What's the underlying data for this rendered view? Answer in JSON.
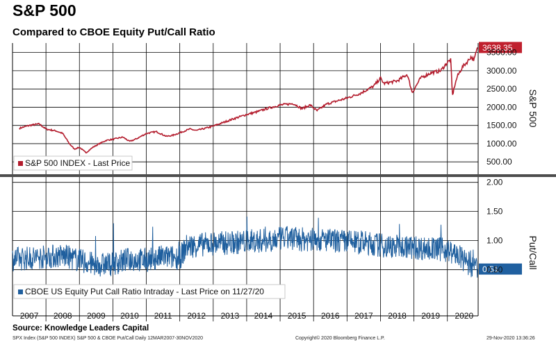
{
  "header": {
    "title": "S&P 500",
    "subtitle": "Compared to CBOE Equity Put/Call Ratio"
  },
  "colors": {
    "spx_line": "#b31b2c",
    "pcr_line": "#1f5f9e",
    "spx_badge": "#c0202e",
    "pcr_badge": "#2060a0",
    "grid": "#000000",
    "divider": "#4d4d4d"
  },
  "chart_data": [
    {
      "type": "line",
      "ylabel": "S&P 500",
      "ylim": [
        180,
        3760
      ],
      "y_ticks": [
        500,
        1000,
        1500,
        2000,
        2500,
        3000,
        3500
      ],
      "y_tick_labels": [
        "500.00",
        "1000.00",
        "1500.00",
        "2000.00",
        "2500.00",
        "3000.00",
        "3500.00"
      ],
      "xlim": [
        2007.0,
        2020.92
      ],
      "x_tick_labels": [
        "2007",
        "2008",
        "2009",
        "2010",
        "2011",
        "2012",
        "2013",
        "2014",
        "2015",
        "2016",
        "2017",
        "2018",
        "2019",
        "2020"
      ],
      "last_value_label": "3638.35",
      "grid": true,
      "series": [
        {
          "name": "S&P 500 INDEX - Last Price",
          "x": [
            2007.2,
            2007.5,
            2007.8,
            2008.0,
            2008.3,
            2008.5,
            2008.7,
            2008.85,
            2009.0,
            2009.2,
            2009.4,
            2009.6,
            2009.8,
            2010.0,
            2010.3,
            2010.5,
            2010.7,
            2011.0,
            2011.3,
            2011.6,
            2011.8,
            2012.0,
            2012.3,
            2012.5,
            2012.8,
            2013.0,
            2013.3,
            2013.6,
            2014.0,
            2014.3,
            2014.6,
            2015.0,
            2015.4,
            2015.65,
            2015.9,
            2016.1,
            2016.4,
            2016.7,
            2017.0,
            2017.4,
            2017.8,
            2018.0,
            2018.1,
            2018.5,
            2018.8,
            2018.95,
            2019.2,
            2019.5,
            2019.8,
            2020.0,
            2020.1,
            2020.15,
            2020.22,
            2020.3,
            2020.45,
            2020.6,
            2020.7,
            2020.8,
            2020.9
          ],
          "y": [
            1420,
            1500,
            1540,
            1400,
            1350,
            1280,
            1000,
            850,
            900,
            750,
            900,
            1000,
            1090,
            1120,
            1180,
            1060,
            1130,
            1280,
            1330,
            1200,
            1230,
            1300,
            1400,
            1360,
            1430,
            1480,
            1580,
            1680,
            1800,
            1870,
            1960,
            2060,
            2100,
            1960,
            2060,
            1900,
            2090,
            2170,
            2250,
            2380,
            2580,
            2800,
            2650,
            2720,
            2900,
            2400,
            2800,
            2940,
            3000,
            3230,
            3300,
            2300,
            2600,
            2850,
            3100,
            3250,
            3380,
            3300,
            3638
          ]
        }
      ]
    },
    {
      "type": "line",
      "ylabel": "Put/Call",
      "ylim": [
        -0.02,
        2.08
      ],
      "y_ticks": [
        0.5,
        1.0,
        1.5,
        2.0
      ],
      "y_tick_labels": [
        "0.50",
        "1.00",
        "1.50",
        "2.00"
      ],
      "xlim": [
        2007.0,
        2020.92
      ],
      "last_value_label": "0.51",
      "grid": true,
      "series": [
        {
          "name": "CBOE US Equity Put Call Ratio Intraday - Last Price on 11/27/20",
          "x": [
            2007.0,
            2007.5,
            2008.0,
            2008.5,
            2009.0,
            2009.5,
            2010.0,
            2010.5,
            2011.0,
            2011.5,
            2012.0,
            2012.2,
            2012.5,
            2013.0,
            2013.5,
            2014.0,
            2014.5,
            2015.0,
            2015.35,
            2015.5,
            2016.0,
            2016.5,
            2017.0,
            2017.5,
            2018.0,
            2018.2,
            2018.5,
            2019.0,
            2019.5,
            2020.0,
            2020.1,
            2020.3,
            2020.5,
            2020.9
          ],
          "y": [
            0.68,
            0.7,
            0.72,
            0.74,
            0.66,
            0.58,
            0.6,
            0.68,
            0.66,
            0.72,
            0.7,
            0.9,
            0.92,
            0.95,
            0.96,
            0.98,
            1.0,
            1.03,
            1.05,
            1.02,
            1.02,
            1.0,
            0.98,
            0.96,
            0.92,
            0.9,
            0.9,
            0.88,
            0.86,
            0.84,
            0.8,
            0.75,
            0.65,
            0.51
          ]
        }
      ]
    }
  ],
  "source": "Source: Knowledge Leaders Capital",
  "footer": {
    "left": "SPX Index (S&P 500 INDEX) S&P 500 & CBOE Put/Call  Daily 12MAR2007-30NOV2020",
    "center": "Copyright© 2020 Bloomberg Finance L.P.",
    "right": "29-Nov-2020 13:36:26"
  }
}
